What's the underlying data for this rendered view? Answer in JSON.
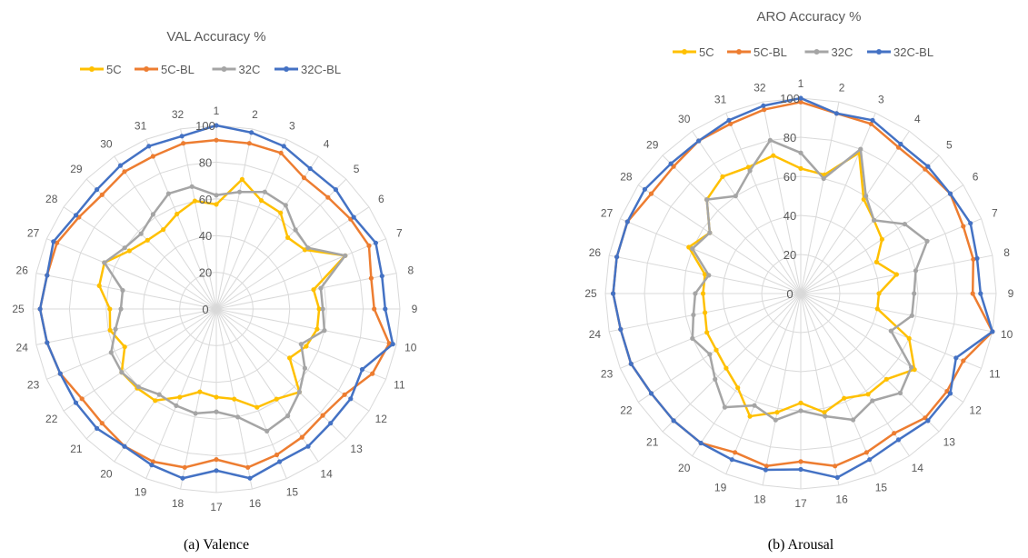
{
  "chart_data": [
    {
      "type": "radar",
      "title": "VAL Accuracy %",
      "caption": "(a) Valence",
      "categories": [
        "1",
        "2",
        "3",
        "4",
        "5",
        "6",
        "7",
        "8",
        "9",
        "10",
        "11",
        "12",
        "13",
        "14",
        "15",
        "16",
        "17",
        "18",
        "19",
        "20",
        "21",
        "22",
        "23",
        "24",
        "25",
        "26",
        "27",
        "28",
        "29",
        "30",
        "31",
        "32"
      ],
      "rlim": [
        0,
        100
      ],
      "ticks": [
        0,
        20,
        40,
        60,
        80,
        100
      ],
      "ticks_label": [
        "0",
        "20",
        "40",
        "60",
        "80",
        "100"
      ],
      "legend_position": "top",
      "grid": true,
      "series": [
        {
          "name": "5C",
          "color": "#ffc000",
          "values": [
            57,
            72,
            64,
            63,
            55,
            58,
            76,
            54,
            56,
            56,
            53,
            48,
            64,
            59,
            58,
            50,
            48,
            46,
            52,
            60,
            61,
            62,
            54,
            59,
            58,
            65,
            66,
            57,
            53,
            52,
            56,
            60
          ]
        },
        {
          "name": "5C-BL",
          "color": "#ed7d31",
          "values": [
            92,
            92,
            92,
            86,
            86,
            88,
            90,
            86,
            86,
            96,
            92,
            84,
            82,
            84,
            86,
            88,
            82,
            88,
            90,
            90,
            88,
            88,
            92,
            94,
            96,
            94,
            94,
            90,
            88,
            90,
            90,
            92
          ]
        },
        {
          "name": "32C",
          "color": "#a5a5a5",
          "values": [
            62,
            65,
            69,
            68,
            61,
            60,
            76,
            58,
            58,
            60,
            50,
            58,
            64,
            70,
            72,
            60,
            56,
            58,
            57,
            56,
            60,
            62,
            62,
            56,
            52,
            52,
            66,
            60,
            58,
            62,
            68,
            68
          ]
        },
        {
          "name": "32C-BL",
          "color": "#4472c4",
          "values": [
            100,
            98,
            96,
            92,
            92,
            90,
            94,
            92,
            92,
            98,
            86,
            88,
            88,
            90,
            90,
            94,
            88,
            94,
            92,
            90,
            92,
            92,
            92,
            94,
            96,
            94,
            96,
            92,
            92,
            94,
            96,
            96
          ]
        }
      ]
    },
    {
      "type": "radar",
      "title": "ARO Accuracy %",
      "caption": "(b) Arousal",
      "categories": [
        "1",
        "2",
        "3",
        "4",
        "5",
        "6",
        "7",
        "8",
        "9",
        "10",
        "11",
        "12",
        "13",
        "14",
        "15",
        "16",
        "17",
        "18",
        "19",
        "20",
        "21",
        "22",
        "23",
        "24",
        "25",
        "26",
        "27",
        "28",
        "29",
        "30",
        "31",
        "32"
      ],
      "rlim": [
        0,
        100
      ],
      "ticks": [
        0,
        20,
        40,
        60,
        80,
        100
      ],
      "ticks_label": [
        "0",
        "20",
        "40",
        "60",
        "80",
        "100"
      ],
      "legend_position": "top",
      "grid": true,
      "series": [
        {
          "name": "5C",
          "color": "#ffc000",
          "values": [
            64,
            62,
            78,
            58,
            53,
            50,
            42,
            50,
            40,
            40,
            60,
            70,
            62,
            62,
            58,
            62,
            56,
            62,
            68,
            58,
            54,
            52,
            52,
            50,
            50,
            50,
            62,
            56,
            68,
            72,
            70,
            72
          ]
        },
        {
          "name": "5C-BL",
          "color": "#ed7d31",
          "values": [
            98,
            94,
            94,
            90,
            90,
            92,
            90,
            90,
            88,
            100,
            90,
            90,
            90,
            86,
            88,
            90,
            86,
            90,
            88,
            92,
            92,
            92,
            94,
            94,
            96,
            96,
            96,
            92,
            92,
            94,
            94,
            96
          ]
        },
        {
          "name": "32C",
          "color": "#a5a5a5",
          "values": [
            72,
            60,
            80,
            60,
            53,
            64,
            70,
            60,
            58,
            58,
            50,
            68,
            72,
            66,
            70,
            64,
            60,
            66,
            62,
            70,
            62,
            56,
            60,
            56,
            54,
            48,
            60,
            56,
            68,
            60,
            68,
            80
          ]
        },
        {
          "name": "32C-BL",
          "color": "#4472c4",
          "values": [
            100,
            94,
            96,
            92,
            92,
            92,
            94,
            92,
            92,
            100,
            86,
            92,
            92,
            90,
            92,
            96,
            90,
            92,
            92,
            92,
            92,
            92,
            94,
            94,
            96,
            96,
            96,
            96,
            94,
            94,
            96,
            98
          ]
        }
      ]
    }
  ]
}
